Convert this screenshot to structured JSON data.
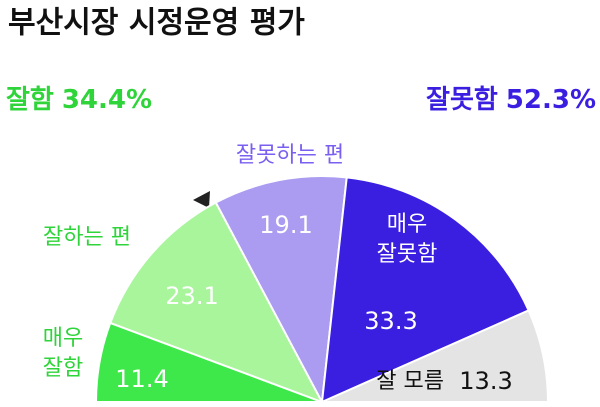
{
  "chart_data": {
    "type": "semi-pie",
    "title": "부산시장 시정운영 평가",
    "summary": [
      {
        "name": "잘함",
        "value_label": "34.4%",
        "color": "#2fd43a"
      },
      {
        "name": "잘못함",
        "value_label": "52.3%",
        "color": "#3a1fe0"
      }
    ],
    "categories": [
      "매우\n잘함",
      "잘하는 편",
      "잘못하는 편",
      "매우\n잘못함",
      "잘 모름"
    ],
    "values": [
      11.4,
      23.1,
      19.1,
      33.3,
      13.3
    ],
    "colors": [
      "#3ee84a",
      "#a8f59c",
      "#ab9cf2",
      "#3a1fe0",
      "#e4e4e4"
    ]
  }
}
